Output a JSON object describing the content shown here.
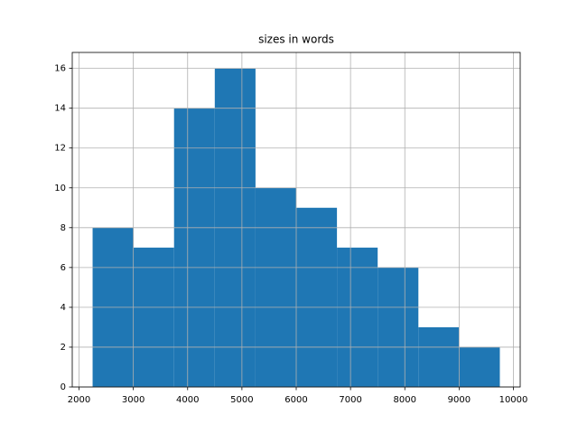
{
  "chart_data": {
    "type": "histogram",
    "title": "sizes in words",
    "bins": [
      2250,
      3000,
      3750,
      4500,
      5250,
      6000,
      6750,
      7500,
      8250,
      9000,
      9750
    ],
    "values": [
      8,
      7,
      14,
      16,
      10,
      9,
      7,
      6,
      3,
      2
    ],
    "color": "#1f77b4",
    "xlim": [
      1875,
      10125
    ],
    "xticks": [
      2000,
      3000,
      4000,
      5000,
      6000,
      7000,
      8000,
      9000,
      10000
    ],
    "ylim": [
      0,
      16.8
    ],
    "yticks": [
      0,
      2,
      4,
      6,
      8,
      10,
      12,
      14,
      16
    ],
    "grid": true
  }
}
